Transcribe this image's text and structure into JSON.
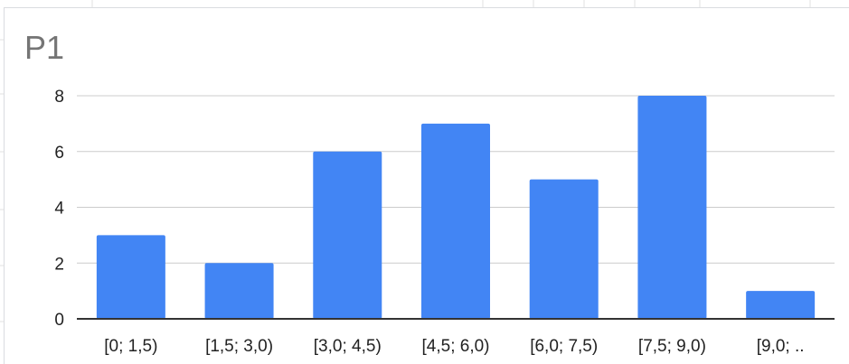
{
  "chart_data": {
    "type": "bar",
    "title": "P1",
    "categories": [
      "[0; 1,5)",
      "[1,5; 3,0)",
      "[3,0; 4,5)",
      "[4,5; 6,0)",
      "[6,0; 7,5)",
      "[7,5; 9,0)",
      "[9,0; .."
    ],
    "values": [
      3,
      2,
      6,
      7,
      5,
      8,
      1
    ],
    "ylim": [
      0,
      8
    ],
    "yticks": [
      0,
      2,
      4,
      6,
      8
    ],
    "xlabel": "",
    "ylabel": "",
    "grid": true,
    "legend": "none",
    "bar_color": "#4285f4",
    "grid_color": "#cccccc",
    "axis_color": "#333333"
  }
}
